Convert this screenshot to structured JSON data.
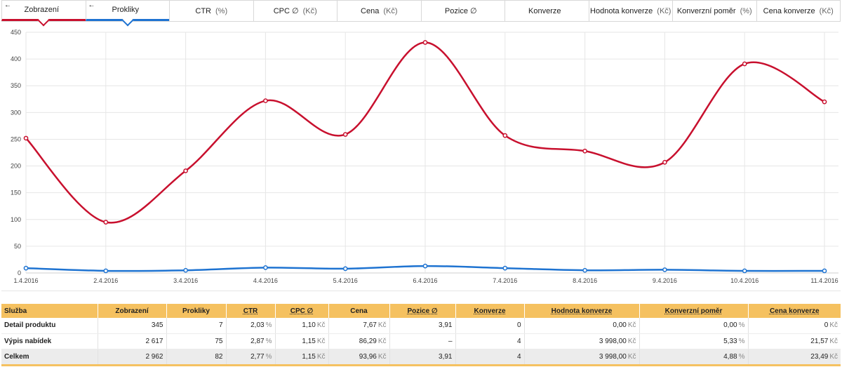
{
  "tabs": [
    {
      "label": "Zobrazení",
      "unit": "",
      "active": true,
      "accent": "#c8102e",
      "arrow": "←"
    },
    {
      "label": "Prokliky",
      "unit": "",
      "active": true,
      "accent": "#1e73d1",
      "arrow": "←"
    },
    {
      "label": "CTR",
      "unit": "(%)",
      "active": false
    },
    {
      "label": "CPC ∅",
      "unit": "(Kč)",
      "active": false
    },
    {
      "label": "Cena",
      "unit": "(Kč)",
      "active": false
    },
    {
      "label": "Pozice ∅",
      "unit": "",
      "active": false
    },
    {
      "label": "Konverze",
      "unit": "",
      "active": false
    },
    {
      "label": "Hodnota konverze",
      "unit": "(Kč)",
      "active": false
    },
    {
      "label": "Konverzní poměr",
      "unit": "(%)",
      "active": false
    },
    {
      "label": "Cena konverze",
      "unit": "(Kč)",
      "active": false
    }
  ],
  "chart_data": {
    "type": "line",
    "categories": [
      "1.4.2016",
      "2.4.2016",
      "3.4.2016",
      "4.4.2016",
      "5.4.2016",
      "6.4.2016",
      "7.4.2016",
      "8.4.2016",
      "9.4.2016",
      "10.4.2016",
      "11.4.2016"
    ],
    "y_ticks": [
      "0",
      "50",
      "100",
      "150",
      "200",
      "250",
      "300",
      "350",
      "400",
      "450"
    ],
    "ylim": [
      0,
      450
    ],
    "grid": true,
    "series": [
      {
        "name": "Zobrazení",
        "color": "#c8102e",
        "values": [
          252,
          95,
          191,
          322,
          259,
          431,
          257,
          228,
          207,
          391,
          320
        ]
      },
      {
        "name": "Prokliky",
        "color": "#1e73d1",
        "values": [
          9,
          4,
          5,
          10,
          8,
          13,
          9,
          5,
          6,
          4,
          4
        ]
      }
    ]
  },
  "table": {
    "headers": [
      "Služba",
      "Zobrazení",
      "Prokliky",
      "CTR",
      "CPC ∅",
      "Cena",
      "Pozice ∅",
      "Konverze",
      "Hodnota konverze",
      "Konverzní poměr",
      "Cena konverze"
    ],
    "rows": [
      {
        "name": "Detail produktu",
        "cells": [
          {
            "v": "345",
            "u": ""
          },
          {
            "v": "7",
            "u": ""
          },
          {
            "v": "2,03",
            "u": "%"
          },
          {
            "v": "1,10",
            "u": "Kč"
          },
          {
            "v": "7,67",
            "u": "Kč"
          },
          {
            "v": "3,91",
            "u": ""
          },
          {
            "v": "0",
            "u": ""
          },
          {
            "v": "0,00",
            "u": "Kč"
          },
          {
            "v": "0,00",
            "u": "%"
          },
          {
            "v": "0",
            "u": "Kč"
          }
        ]
      },
      {
        "name": "Výpis nabídek",
        "cells": [
          {
            "v": "2 617",
            "u": ""
          },
          {
            "v": "75",
            "u": ""
          },
          {
            "v": "2,87",
            "u": "%"
          },
          {
            "v": "1,15",
            "u": "Kč"
          },
          {
            "v": "86,29",
            "u": "Kč"
          },
          {
            "v": "–",
            "u": ""
          },
          {
            "v": "4",
            "u": ""
          },
          {
            "v": "3 998,00",
            "u": "Kč"
          },
          {
            "v": "5,33",
            "u": "%"
          },
          {
            "v": "21,57",
            "u": "Kč"
          }
        ]
      }
    ],
    "total": {
      "name": "Celkem",
      "cells": [
        {
          "v": "2 962",
          "u": ""
        },
        {
          "v": "82",
          "u": ""
        },
        {
          "v": "2,77",
          "u": "%"
        },
        {
          "v": "1,15",
          "u": "Kč"
        },
        {
          "v": "93,96",
          "u": "Kč"
        },
        {
          "v": "3,91",
          "u": ""
        },
        {
          "v": "4",
          "u": ""
        },
        {
          "v": "3 998,00",
          "u": "Kč"
        },
        {
          "v": "4,88",
          "u": "%"
        },
        {
          "v": "23,49",
          "u": "Kč"
        }
      ]
    }
  }
}
